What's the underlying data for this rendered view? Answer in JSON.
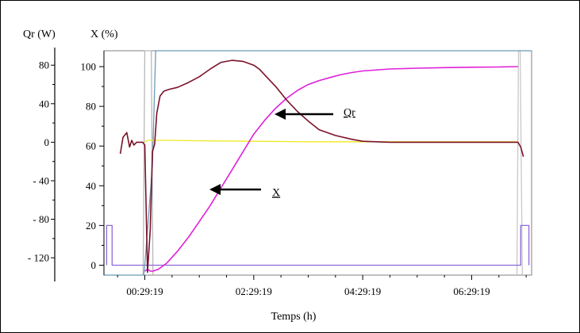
{
  "chart_data": {
    "type": "line",
    "left_axis_label": "Qr (W)",
    "right_axis_label": "X (%)",
    "xlabel": "Temps (h)",
    "x_tick_labels": [
      "00:29:19",
      "02:29:19",
      "04:29:19",
      "06:29:19"
    ],
    "x_ticks_hours": [
      0.0,
      2.0,
      4.0,
      6.0
    ],
    "xlim_hours": [
      -0.75,
      7.1
    ],
    "qr_ticks": [
      80,
      40,
      0,
      -40,
      -80,
      -120
    ],
    "qr_tick_labels": [
      "80",
      "40",
      "0",
      "- 40",
      "- 80",
      "- 120"
    ],
    "qr_ylim": [
      -138,
      95
    ],
    "x_ticks": [
      100,
      80,
      60,
      40,
      20,
      0
    ],
    "x_tick_labels_pct": [
      "100",
      "80",
      "60",
      "40",
      "20",
      "0"
    ],
    "x_ylim": [
      -5,
      108
    ],
    "annotations": [
      {
        "text": "Qr",
        "series": "Qr"
      },
      {
        "text": "X",
        "series": "X"
      }
    ],
    "series": [
      {
        "key": "Qr",
        "axis": "left",
        "color": "#7a1228",
        "x": [
          -0.45,
          -0.4,
          -0.33,
          -0.28,
          -0.24,
          -0.2,
          -0.15,
          -0.1,
          -0.04,
          0.0,
          0.05,
          0.1,
          0.14,
          0.18,
          0.22,
          0.28,
          0.35,
          0.45,
          0.6,
          0.8,
          1.0,
          1.2,
          1.4,
          1.6,
          1.8,
          2.0,
          2.1,
          2.2,
          2.4,
          2.6,
          2.8,
          3.0,
          3.2,
          3.5,
          3.8,
          4.0,
          4.5,
          5.0,
          5.5,
          6.0,
          6.5,
          6.85,
          6.9,
          6.95
        ],
        "y": [
          -12,
          5,
          10,
          -5,
          2,
          -3,
          0,
          0,
          0,
          -3,
          -135,
          -90,
          -10,
          -2,
          30,
          48,
          53,
          55,
          57,
          62,
          68,
          76,
          83,
          85,
          84,
          80,
          76,
          70,
          58,
          44,
          32,
          22,
          13,
          7,
          3,
          1,
          0,
          0,
          0,
          0,
          0,
          0,
          -5,
          -15
        ]
      },
      {
        "key": "X",
        "axis": "right",
        "color": "#e020d8",
        "x": [
          0.0,
          0.05,
          0.1,
          0.15,
          0.25,
          0.4,
          0.6,
          0.8,
          1.0,
          1.2,
          1.4,
          1.6,
          1.8,
          2.0,
          2.2,
          2.4,
          2.6,
          2.8,
          3.0,
          3.2,
          3.4,
          3.6,
          3.8,
          4.0,
          4.2,
          4.5,
          5.0,
          5.5,
          6.0,
          6.5,
          6.85
        ],
        "y": [
          -3,
          -2,
          -3,
          -3,
          -2,
          1,
          7,
          14,
          22,
          30,
          39,
          48,
          57,
          66,
          73,
          79,
          84,
          88,
          91,
          93,
          94.5,
          96,
          97,
          97.8,
          98.2,
          98.8,
          99.2,
          99.5,
          99.7,
          99.8,
          100
        ]
      },
      {
        "key": "yellow",
        "axis": "left",
        "color": "#f0e820",
        "x": [
          0.0,
          0.05,
          0.5,
          1.0,
          2.0,
          3.0,
          4.0,
          5.0,
          6.0,
          6.85
        ],
        "y": [
          0,
          2,
          2,
          1.5,
          1,
          0.5,
          0.5,
          0.5,
          0.5,
          0.5
        ]
      },
      {
        "key": "blue",
        "axis": "right",
        "color": "#6a9ab8",
        "x": [
          -0.75,
          -0.02,
          0.0,
          0.14,
          0.2,
          0.4,
          7.1
        ],
        "y": [
          -5,
          -5,
          0,
          50,
          108,
          108,
          108
        ]
      },
      {
        "key": "purple",
        "axis": "right",
        "color": "#8a6ad8",
        "x": [
          -0.7,
          -0.7,
          -0.6,
          -0.6,
          6.9,
          6.9,
          7.05,
          7.05
        ],
        "y": [
          0,
          20,
          20,
          0,
          0,
          20,
          20,
          0
        ]
      },
      {
        "key": "gray-left",
        "axis": "right",
        "color": "#b8b8b8",
        "x": [
          -0.03,
          0.0,
          0.12,
          0.15
        ],
        "y": [
          -5,
          108,
          108,
          -5
        ]
      },
      {
        "key": "gray-right",
        "axis": "right",
        "color": "#c8c8c8",
        "x": [
          6.83,
          6.86,
          6.89,
          6.93
        ],
        "y": [
          -5,
          108,
          108,
          -5
        ]
      }
    ]
  }
}
